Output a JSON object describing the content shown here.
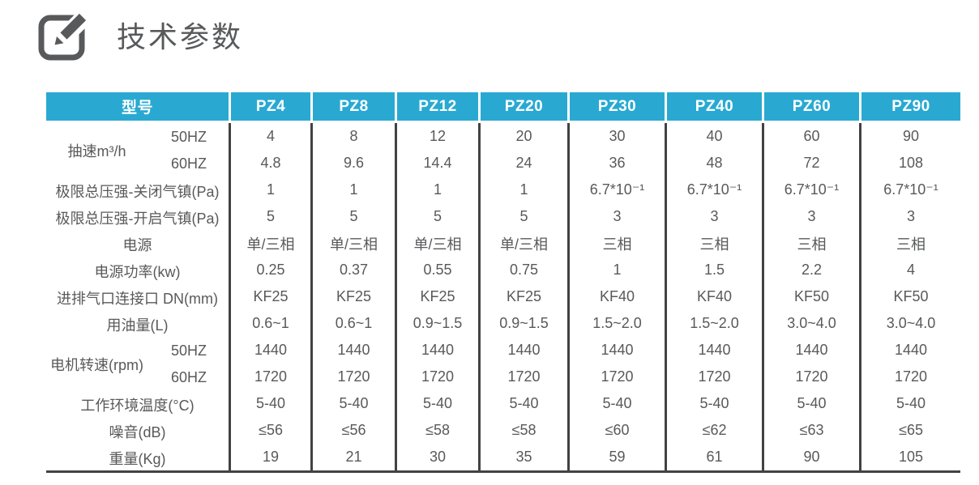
{
  "page": {
    "title": "技术参数"
  },
  "colors": {
    "header_bg": "#29a9d2",
    "header_text": "#ffffff",
    "stripe_bg": "#eaeaea",
    "dark_border": "#424242",
    "text": "#58595b",
    "icon": "#58595b"
  },
  "icons": {
    "title_icon": "pencil-edit-square-icon"
  },
  "table": {
    "header": {
      "label": "型号",
      "models": [
        "PZ4",
        "PZ8",
        "PZ12",
        "PZ20",
        "PZ30",
        "PZ40",
        "PZ60",
        "PZ90"
      ]
    },
    "rows": [
      {
        "label": "抽速m³/h",
        "group": true,
        "sub_rows": [
          {
            "label": "50HZ",
            "values": [
              "4",
              "8",
              "12",
              "20",
              "30",
              "40",
              "60",
              "90"
            ]
          },
          {
            "label": "60HZ",
            "values": [
              "4.8",
              "9.6",
              "14.4",
              "24",
              "36",
              "48",
              "72",
              "108"
            ]
          }
        ]
      },
      {
        "label": "极限总压强-关闭气镇(Pa)",
        "values": [
          "1",
          "1",
          "1",
          "1",
          "6.7*10⁻¹",
          "6.7*10⁻¹",
          "6.7*10⁻¹",
          "6.7*10⁻¹"
        ]
      },
      {
        "label": "极限总压强-开启气镇(Pa)",
        "values": [
          "5",
          "5",
          "5",
          "5",
          "3",
          "3",
          "3",
          "3"
        ]
      },
      {
        "label": "电源",
        "values": [
          "单/三相",
          "单/三相",
          "单/三相",
          "单/三相",
          "三相",
          "三相",
          "三相",
          "三相"
        ]
      },
      {
        "label": "电源功率(kw)",
        "values": [
          "0.25",
          "0.37",
          "0.55",
          "0.75",
          "1",
          "1.5",
          "2.2",
          "4"
        ]
      },
      {
        "label": "进排气口连接口 DN(mm)",
        "values": [
          "KF25",
          "KF25",
          "KF25",
          "KF25",
          "KF40",
          "KF40",
          "KF50",
          "KF50"
        ]
      },
      {
        "label": "用油量(L)",
        "values": [
          "0.6~1",
          "0.6~1",
          "0.9~1.5",
          "0.9~1.5",
          "1.5~2.0",
          "1.5~2.0",
          "3.0~4.0",
          "3.0~4.0"
        ]
      },
      {
        "label": "电机转速(rpm)",
        "group": true,
        "sub_rows": [
          {
            "label": "50HZ",
            "values": [
              "1440",
              "1440",
              "1440",
              "1440",
              "1440",
              "1440",
              "1440",
              "1440"
            ]
          },
          {
            "label": "60HZ",
            "values": [
              "1720",
              "1720",
              "1720",
              "1720",
              "1720",
              "1720",
              "1720",
              "1720"
            ]
          }
        ]
      },
      {
        "label": "工作环境温度(°C)",
        "values": [
          "5-40",
          "5-40",
          "5-40",
          "5-40",
          "5-40",
          "5-40",
          "5-40",
          "5-40"
        ]
      },
      {
        "label": "噪音(dB)",
        "values": [
          "≤56",
          "≤56",
          "≤58",
          "≤58",
          "≤60",
          "≤62",
          "≤63",
          "≤65"
        ]
      },
      {
        "label": "重量(Kg)",
        "values": [
          "19",
          "21",
          "30",
          "35",
          "59",
          "61",
          "90",
          "105"
        ]
      }
    ]
  },
  "chart_data": {
    "type": "table",
    "title": "技术参数",
    "columns": [
      "型号",
      "PZ4",
      "PZ8",
      "PZ12",
      "PZ20",
      "PZ30",
      "PZ40",
      "PZ60",
      "PZ90"
    ],
    "rows": [
      [
        "抽速m³/h 50HZ",
        "4",
        "8",
        "12",
        "20",
        "30",
        "40",
        "60",
        "90"
      ],
      [
        "抽速m³/h 60HZ",
        "4.8",
        "9.6",
        "14.4",
        "24",
        "36",
        "48",
        "72",
        "108"
      ],
      [
        "极限总压强-关闭气镇(Pa)",
        "1",
        "1",
        "1",
        "1",
        "6.7*10⁻¹",
        "6.7*10⁻¹",
        "6.7*10⁻¹",
        "6.7*10⁻¹"
      ],
      [
        "极限总压强-开启气镇(Pa)",
        "5",
        "5",
        "5",
        "5",
        "3",
        "3",
        "3",
        "3"
      ],
      [
        "电源",
        "单/三相",
        "单/三相",
        "单/三相",
        "单/三相",
        "三相",
        "三相",
        "三相",
        "三相"
      ],
      [
        "电源功率(kw)",
        "0.25",
        "0.37",
        "0.55",
        "0.75",
        "1",
        "1.5",
        "2.2",
        "4"
      ],
      [
        "进排气口连接口 DN(mm)",
        "KF25",
        "KF25",
        "KF25",
        "KF25",
        "KF40",
        "KF40",
        "KF50",
        "KF50"
      ],
      [
        "用油量(L)",
        "0.6~1",
        "0.6~1",
        "0.9~1.5",
        "0.9~1.5",
        "1.5~2.0",
        "1.5~2.0",
        "3.0~4.0",
        "3.0~4.0"
      ],
      [
        "电机转速(rpm) 50HZ",
        "1440",
        "1440",
        "1440",
        "1440",
        "1440",
        "1440",
        "1440",
        "1440"
      ],
      [
        "电机转速(rpm) 60HZ",
        "1720",
        "1720",
        "1720",
        "1720",
        "1720",
        "1720",
        "1720",
        "1720"
      ],
      [
        "工作环境温度(°C)",
        "5-40",
        "5-40",
        "5-40",
        "5-40",
        "5-40",
        "5-40",
        "5-40",
        "5-40"
      ],
      [
        "噪音(dB)",
        "≤56",
        "≤56",
        "≤58",
        "≤58",
        "≤60",
        "≤62",
        "≤63",
        "≤65"
      ],
      [
        "重量(Kg)",
        "19",
        "21",
        "30",
        "35",
        "59",
        "61",
        "90",
        "105"
      ]
    ]
  }
}
